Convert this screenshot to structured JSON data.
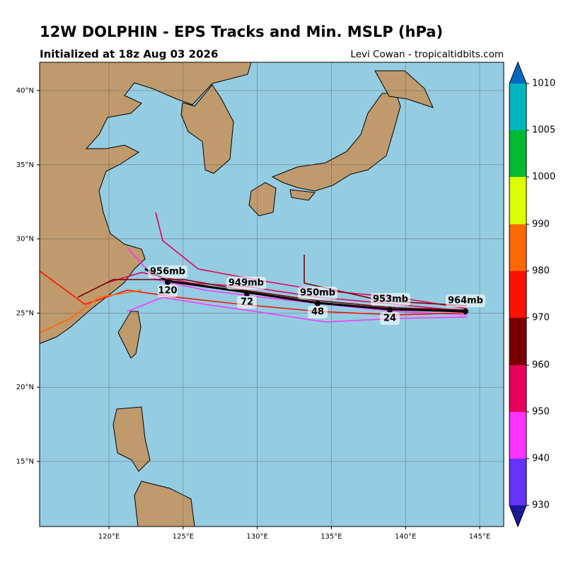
{
  "header": {
    "title": "12W DOLPHIN - EPS Tracks and Min. MSLP (hPa)",
    "subtitle": "Initialized at 18z Aug 03 2026",
    "credit": "Levi Cowan - tropicaltidbits.com"
  },
  "map": {
    "lat_labels": [
      "40°N",
      "35°N",
      "30°N",
      "25°N",
      "20°N",
      "15°N"
    ],
    "lon_labels": [
      "120°E",
      "125°E",
      "130°E",
      "135°E",
      "140°E",
      "145°E"
    ],
    "mean_track": [
      {
        "pressure": "964mb",
        "hour": null
      },
      {
        "pressure": "953mb",
        "hour": "24"
      },
      {
        "pressure": "950mb",
        "hour": "48"
      },
      {
        "pressure": "949mb",
        "hour": "72"
      },
      {
        "pressure": "956mb",
        "hour": "120"
      }
    ]
  },
  "colorbar": {
    "ticks": [
      "1010",
      "1005",
      "1000",
      "990",
      "980",
      "970",
      "960",
      "950",
      "940",
      "930"
    ],
    "colors": [
      "#00b5c0",
      "#00bb30",
      "#ddff00",
      "#ff6a00",
      "#ff1100",
      "#7a0000",
      "#e8005a",
      "#ff33ff",
      "#6633ff"
    ],
    "over_color": "#0068c0",
    "under_color": "#1a1a9a"
  }
}
